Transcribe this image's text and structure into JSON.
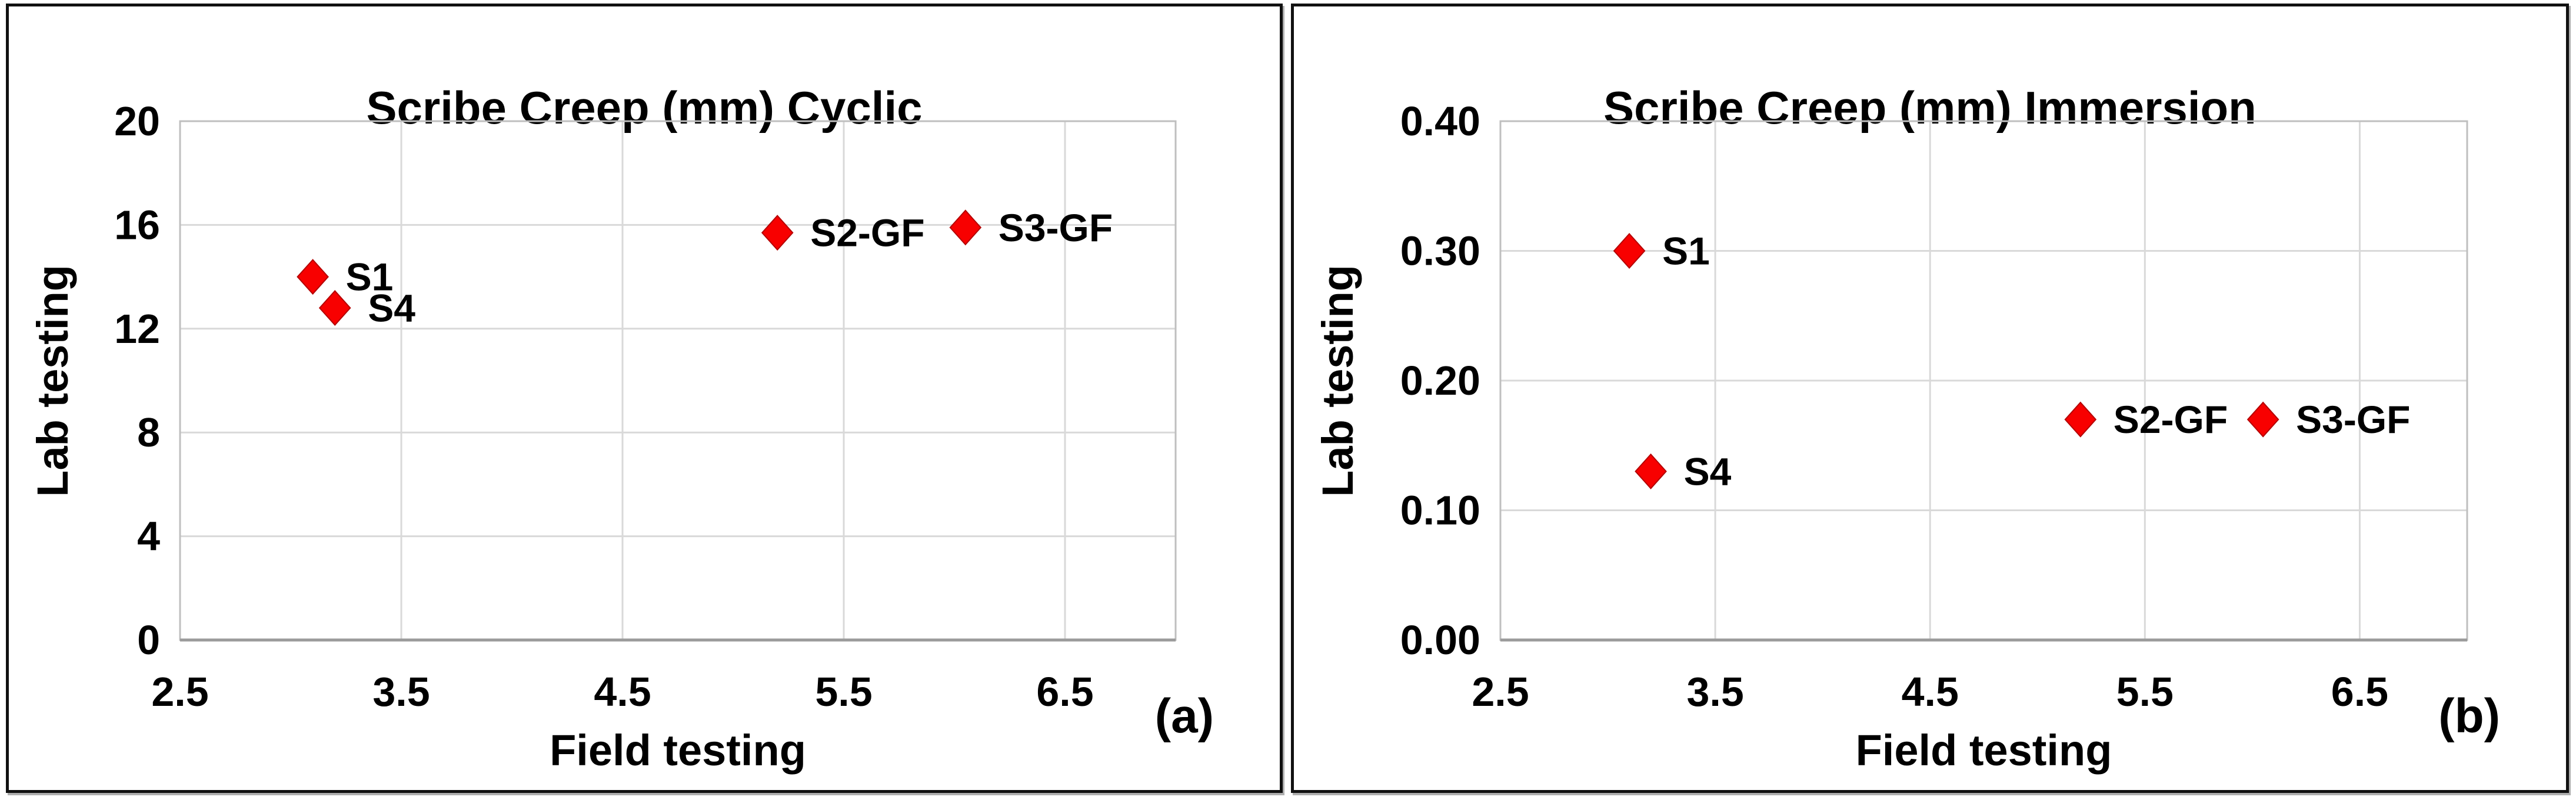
{
  "figure": {
    "background": "#ffffff",
    "panel_border_color": "#111111",
    "gridline_color": "#d9d9d9",
    "text_color": "#000000"
  },
  "chart_data": [
    {
      "type": "scatter",
      "title": "Scribe Creep (mm) Cyclic",
      "xlabel": "Field testing",
      "ylabel": "Lab testing",
      "panel_label": "(a)",
      "xlim": [
        2.5,
        7.0
      ],
      "ylim": [
        0,
        20
      ],
      "xticks": [
        2.5,
        3.5,
        4.5,
        5.5,
        6.5
      ],
      "xtick_labels": [
        "2.5",
        "3.5",
        "4.5",
        "5.5",
        "6.5"
      ],
      "yticks": [
        0,
        4,
        8,
        12,
        16,
        20
      ],
      "ytick_labels": [
        "0",
        "4",
        "8",
        "12",
        "16",
        "20"
      ],
      "grid": true,
      "legend": "none",
      "marker": "diamond",
      "marker_color": "#f80000",
      "marker_stroke": "#b50000",
      "points": [
        {
          "label": "S1",
          "x": 3.1,
          "y": 14.0
        },
        {
          "label": "S4",
          "x": 3.2,
          "y": 12.8
        },
        {
          "label": "S2-GF",
          "x": 5.2,
          "y": 15.7
        },
        {
          "label": "S3-GF",
          "x": 6.05,
          "y": 15.9
        }
      ]
    },
    {
      "type": "scatter",
      "title": "Scribe Creep (mm) Immersion",
      "xlabel": "Field testing",
      "ylabel": "Lab testing",
      "panel_label": "(b)",
      "xlim": [
        2.5,
        7.0
      ],
      "ylim": [
        0,
        0.4
      ],
      "xticks": [
        2.5,
        3.5,
        4.5,
        5.5,
        6.5
      ],
      "xtick_labels": [
        "2.5",
        "3.5",
        "4.5",
        "5.5",
        "6.5"
      ],
      "yticks": [
        0.0,
        0.1,
        0.2,
        0.3,
        0.4
      ],
      "ytick_labels": [
        "0.00",
        "0.10",
        "0.20",
        "0.30",
        "0.40"
      ],
      "grid": true,
      "legend": "none",
      "marker": "diamond",
      "marker_color": "#f80000",
      "marker_stroke": "#b50000",
      "points": [
        {
          "label": "S1",
          "x": 3.1,
          "y": 0.3
        },
        {
          "label": "S4",
          "x": 3.2,
          "y": 0.13
        },
        {
          "label": "S2-GF",
          "x": 5.2,
          "y": 0.17
        },
        {
          "label": "S3-GF",
          "x": 6.05,
          "y": 0.17
        }
      ]
    }
  ]
}
